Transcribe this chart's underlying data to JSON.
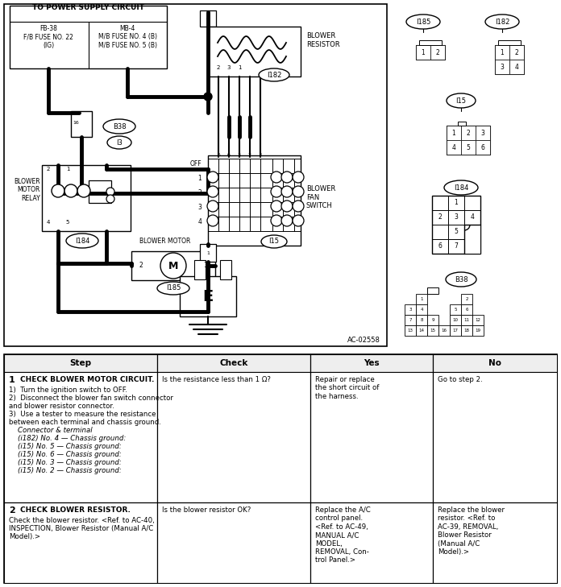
{
  "fig_width": 6.96,
  "fig_height": 7.29,
  "dpi": 100,
  "bg": "#ffffff",
  "table": {
    "headers": [
      "Step",
      "Check",
      "Yes",
      "No"
    ],
    "row1_step": "1",
    "row1_title": "CHECK BLOWER MOTOR CIRCUIT.",
    "row1_body": [
      "1)  Turn the ignition switch to OFF.",
      "2)  Disconnect the blower fan switch connector",
      "and blower resistor connector.",
      "3)  Use a tester to measure the resistance",
      "between each terminal and chassis ground."
    ],
    "row1_italic": [
      "    Connector & terminal",
      "    (i182) No. 4 — Chassis ground:",
      "    (i15) No. 5 — Chassis ground:",
      "    (i15) No. 6 — Chassis ground:",
      "    (i15) No. 3 — Chassis ground:",
      "    (i15) No. 2 — Chassis ground:"
    ],
    "row1_check": "Is the resistance less than 1 Ω?",
    "row1_yes": "Repair or replace\nthe short circuit of\nthe harness.",
    "row1_no": "Go to step 2.",
    "row2_step": "2",
    "row2_title": "CHECK BLOWER RESISTOR.",
    "row2_body": [
      "Check the blower resistor. <Ref. to AC-40,",
      "INSPECTION, Blower Resistor (Manual A/C",
      "Model).>"
    ],
    "row2_check": "Is the blower resistor OK?",
    "row2_yes": "Replace the A/C\ncontrol panel.\n<Ref. to AC-49,\nMANUAL A/C\nMODEL,\nREMOVAL, Con-\ntrol Panel.>",
    "row2_no": "Replace the blower\nresistor. <Ref. to\nAC-39, REMOVAL,\nBlower Resistor\n(Manual A/C\nModel).>"
  }
}
